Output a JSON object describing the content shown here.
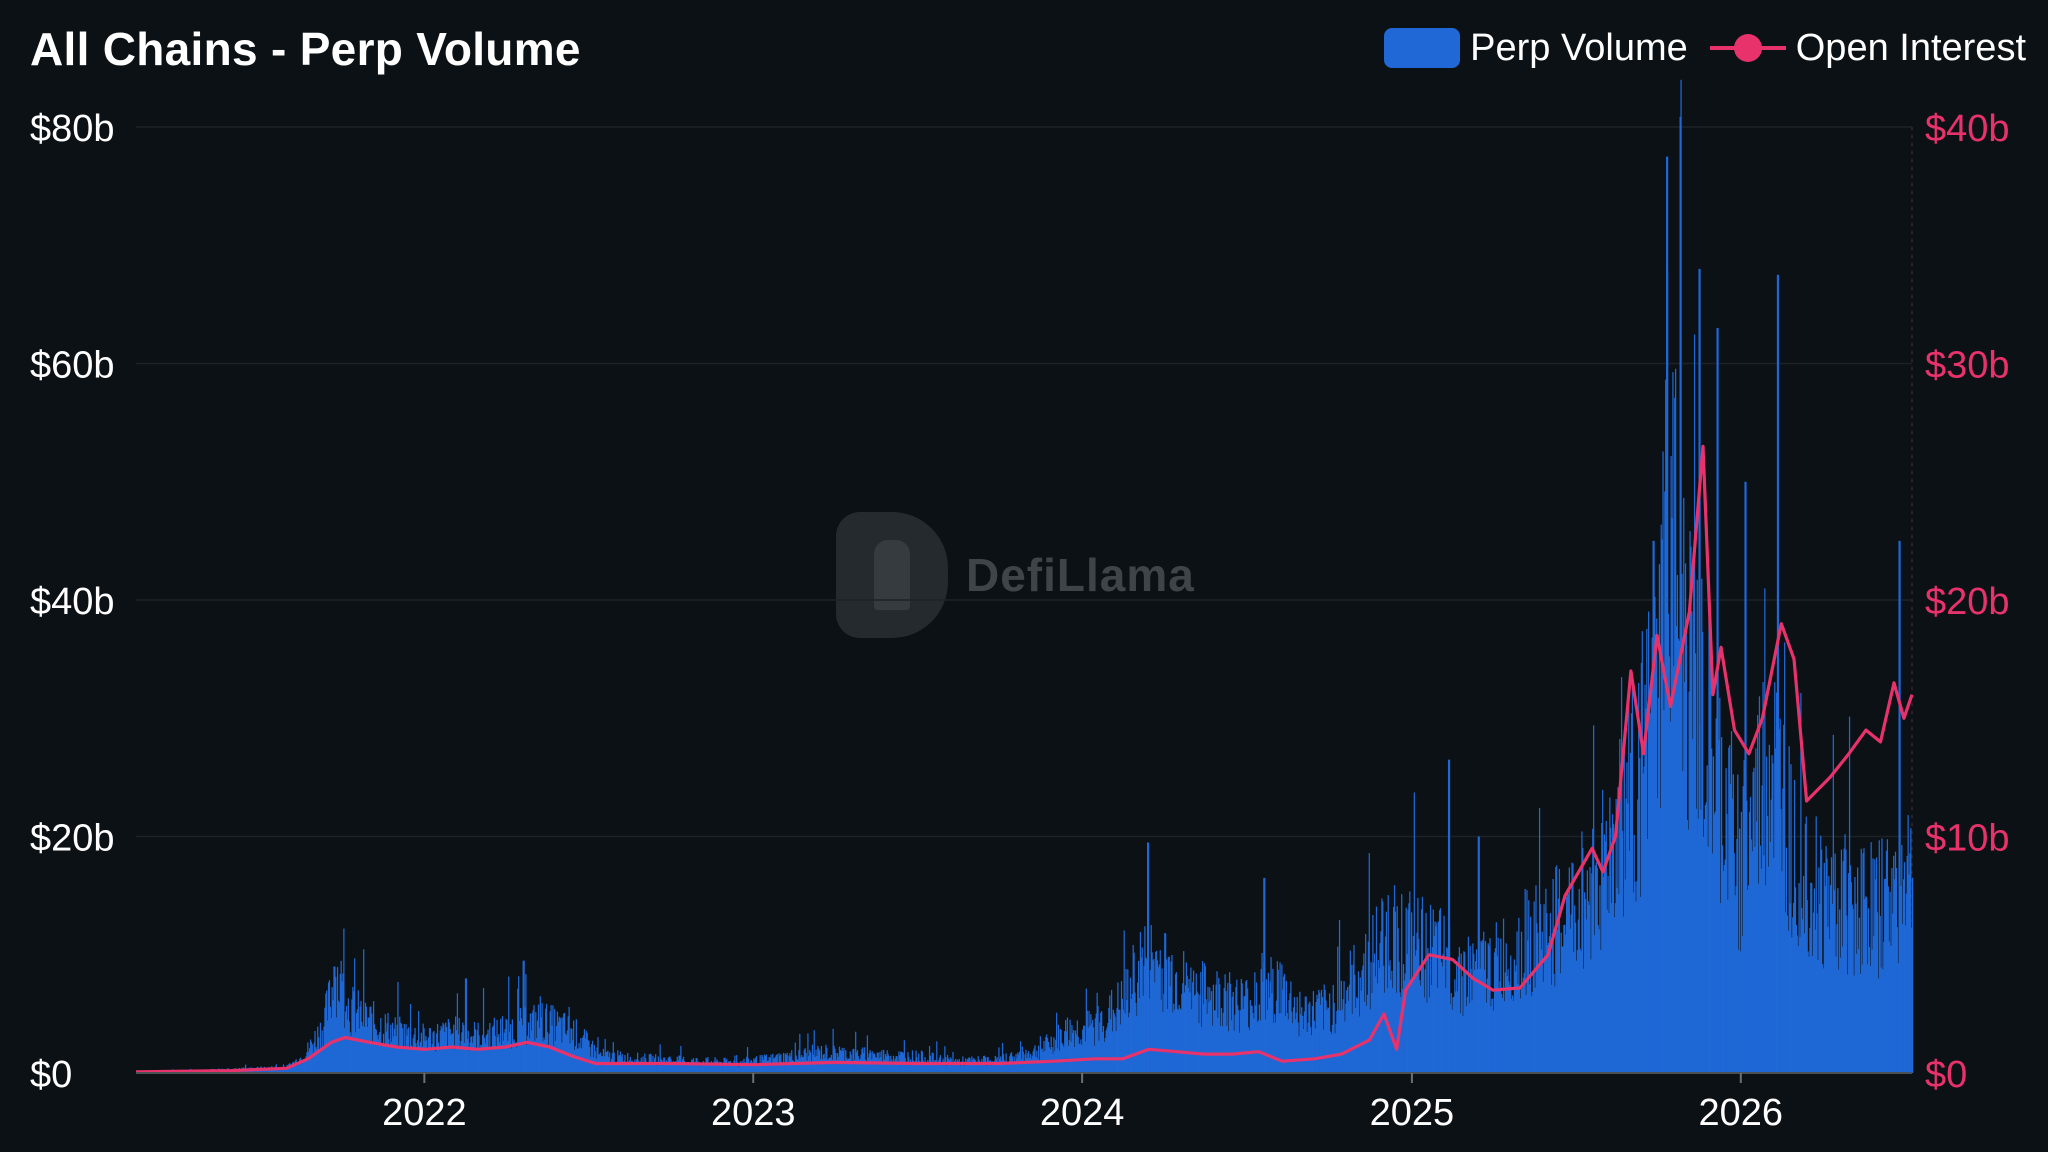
{
  "title": "All Chains - Perp Volume",
  "brand": "DefiLlama",
  "colors": {
    "background": "#0c1115",
    "volume": "#1f68d6",
    "open_interest": "#e8326b",
    "grid": "#1c2226",
    "left_axis_text": "#ffffff",
    "right_axis_text": "#e8326b"
  },
  "legend": {
    "perp_volume": "Perp Volume",
    "open_interest": "Open Interest"
  },
  "chart_data": {
    "type": "bar",
    "title": "All Chains - Perp Volume",
    "legend_position": "top-right",
    "grid": true,
    "x_range": [
      "2021-02-15",
      "2026-07-10"
    ],
    "x_ticks": [
      "2022",
      "2023",
      "2024",
      "2025",
      "2026"
    ],
    "left_axis": {
      "range": [
        0,
        80
      ],
      "ticks": [
        0,
        20,
        40,
        60,
        80
      ],
      "tick_labels": [
        "$0",
        "$20b",
        "$40b",
        "$60b",
        "$80b"
      ],
      "unit": "billion USD"
    },
    "right_axis": {
      "range": [
        0,
        40
      ],
      "ticks": [
        0,
        10,
        20,
        30,
        40
      ],
      "tick_labels": [
        "$0",
        "$10b",
        "$20b",
        "$30b",
        "$40b"
      ],
      "unit": "billion USD"
    },
    "series": [
      {
        "name": "Perp Volume",
        "type": "bar",
        "axis": "left",
        "points": [
          [
            "2021-02-15",
            0.1
          ],
          [
            "2021-04-01",
            0.2
          ],
          [
            "2021-06-01",
            0.3
          ],
          [
            "2021-08-01",
            0.5
          ],
          [
            "2021-08-20",
            1.5
          ],
          [
            "2021-09-10",
            4.0
          ],
          [
            "2021-09-25",
            8.5
          ],
          [
            "2021-10-10",
            5.5
          ],
          [
            "2021-11-01",
            4.5
          ],
          [
            "2021-12-01",
            3.5
          ],
          [
            "2022-01-01",
            3.0
          ],
          [
            "2022-02-01",
            3.5
          ],
          [
            "2022-03-01",
            3.2
          ],
          [
            "2022-04-01",
            3.6
          ],
          [
            "2022-05-10",
            4.5
          ],
          [
            "2022-06-15",
            3.5
          ],
          [
            "2022-07-15",
            1.5
          ],
          [
            "2022-09-01",
            1.2
          ],
          [
            "2022-11-01",
            1.0
          ],
          [
            "2022-12-15",
            0.9
          ],
          [
            "2023-01-20",
            1.2
          ],
          [
            "2023-03-15",
            1.8
          ],
          [
            "2023-05-01",
            1.6
          ],
          [
            "2023-07-01",
            1.4
          ],
          [
            "2023-08-15",
            1.0
          ],
          [
            "2023-10-01",
            1.1
          ],
          [
            "2023-11-15",
            2.0
          ],
          [
            "2023-12-15",
            3.5
          ],
          [
            "2024-01-15",
            4.0
          ],
          [
            "2024-02-15",
            6.0
          ],
          [
            "2024-03-10",
            10.0
          ],
          [
            "2024-04-01",
            9.0
          ],
          [
            "2024-05-01",
            7.0
          ],
          [
            "2024-06-01",
            6.5
          ],
          [
            "2024-07-01",
            6.0
          ],
          [
            "2024-08-05",
            7.5
          ],
          [
            "2024-09-01",
            5.0
          ],
          [
            "2024-10-01",
            5.5
          ],
          [
            "2024-11-10",
            9.0
          ],
          [
            "2024-12-05",
            12.0
          ],
          [
            "2025-01-01",
            11.0
          ],
          [
            "2025-02-01",
            10.0
          ],
          [
            "2025-03-01",
            8.5
          ],
          [
            "2025-04-01",
            9.0
          ],
          [
            "2025-05-01",
            11.0
          ],
          [
            "2025-06-01",
            12.0
          ],
          [
            "2025-07-01",
            14.0
          ],
          [
            "2025-08-01",
            18.0
          ],
          [
            "2025-09-01",
            24.0
          ],
          [
            "2025-10-01",
            31.0
          ],
          [
            "2025-10-10",
            50.0
          ],
          [
            "2025-11-01",
            35.0
          ],
          [
            "2025-12-01",
            26.0
          ],
          [
            "2026-01-01",
            18.0
          ],
          [
            "2026-02-01",
            27.0
          ],
          [
            "2026-03-01",
            20.0
          ],
          [
            "2026-04-01",
            15.0
          ],
          [
            "2026-05-01",
            15.0
          ],
          [
            "2026-06-01",
            14.0
          ],
          [
            "2026-07-01",
            16.0
          ]
        ],
        "peaks": [
          [
            "2021-09-22",
            9.0
          ],
          [
            "2022-02-15",
            8.0
          ],
          [
            "2022-04-20",
            9.5
          ],
          [
            "2024-03-13",
            19.5
          ],
          [
            "2024-07-20",
            16.5
          ],
          [
            "2025-02-10",
            26.5
          ],
          [
            "2025-03-15",
            20.0
          ],
          [
            "2025-08-20",
            25.0
          ],
          [
            "2025-09-25",
            45.0
          ],
          [
            "2025-10-10",
            77.5
          ],
          [
            "2025-11-15",
            68.0
          ],
          [
            "2025-12-05",
            63.0
          ],
          [
            "2026-02-10",
            67.5
          ],
          [
            "2026-01-05",
            50.0
          ],
          [
            "2026-06-25",
            45.0
          ]
        ]
      },
      {
        "name": "Open Interest",
        "type": "line",
        "axis": "right",
        "points": [
          [
            "2021-02-15",
            0.05
          ],
          [
            "2021-06-01",
            0.1
          ],
          [
            "2021-08-01",
            0.2
          ],
          [
            "2021-08-25",
            0.6
          ],
          [
            "2021-09-20",
            1.3
          ],
          [
            "2021-10-05",
            1.5
          ],
          [
            "2021-11-01",
            1.3
          ],
          [
            "2021-12-01",
            1.1
          ],
          [
            "2022-01-01",
            1.0
          ],
          [
            "2022-02-01",
            1.1
          ],
          [
            "2022-03-01",
            1.0
          ],
          [
            "2022-04-01",
            1.1
          ],
          [
            "2022-04-25",
            1.3
          ],
          [
            "2022-05-20",
            1.1
          ],
          [
            "2022-06-15",
            0.7
          ],
          [
            "2022-07-10",
            0.4
          ],
          [
            "2022-10-01",
            0.4
          ],
          [
            "2023-01-01",
            0.35
          ],
          [
            "2023-04-01",
            0.45
          ],
          [
            "2023-07-01",
            0.4
          ],
          [
            "2023-10-01",
            0.4
          ],
          [
            "2023-12-01",
            0.5
          ],
          [
            "2024-01-15",
            0.6
          ],
          [
            "2024-02-15",
            0.6
          ],
          [
            "2024-03-15",
            1.0
          ],
          [
            "2024-04-15",
            0.9
          ],
          [
            "2024-05-15",
            0.8
          ],
          [
            "2024-06-15",
            0.8
          ],
          [
            "2024-07-15",
            0.9
          ],
          [
            "2024-08-10",
            0.5
          ],
          [
            "2024-09-15",
            0.6
          ],
          [
            "2024-10-15",
            0.8
          ],
          [
            "2024-11-15",
            1.4
          ],
          [
            "2024-12-01",
            2.5
          ],
          [
            "2024-12-15",
            1.0
          ],
          [
            "2024-12-25",
            3.5
          ],
          [
            "2025-01-20",
            5.0
          ],
          [
            "2025-02-15",
            4.8
          ],
          [
            "2025-03-10",
            4.0
          ],
          [
            "2025-04-01",
            3.5
          ],
          [
            "2025-05-01",
            3.6
          ],
          [
            "2025-06-01",
            5.0
          ],
          [
            "2025-06-20",
            7.5
          ],
          [
            "2025-07-20",
            9.5
          ],
          [
            "2025-08-01",
            8.5
          ],
          [
            "2025-08-15",
            10.0
          ],
          [
            "2025-09-01",
            17.0
          ],
          [
            "2025-09-15",
            13.5
          ],
          [
            "2025-09-30",
            18.5
          ],
          [
            "2025-10-15",
            15.5
          ],
          [
            "2025-11-05",
            19.5
          ],
          [
            "2025-11-20",
            26.5
          ],
          [
            "2025-12-01",
            16.0
          ],
          [
            "2025-12-10",
            18.0
          ],
          [
            "2025-12-25",
            14.5
          ],
          [
            "2026-01-10",
            13.5
          ],
          [
            "2026-01-25",
            15.0
          ],
          [
            "2026-02-15",
            19.0
          ],
          [
            "2026-03-01",
            17.5
          ],
          [
            "2026-03-15",
            11.5
          ],
          [
            "2026-04-10",
            12.5
          ],
          [
            "2026-05-01",
            13.5
          ],
          [
            "2026-05-20",
            14.5
          ],
          [
            "2026-06-05",
            14.0
          ],
          [
            "2026-06-20",
            16.5
          ],
          [
            "2026-07-01",
            15.0
          ],
          [
            "2026-07-10",
            16.0
          ]
        ]
      }
    ]
  }
}
